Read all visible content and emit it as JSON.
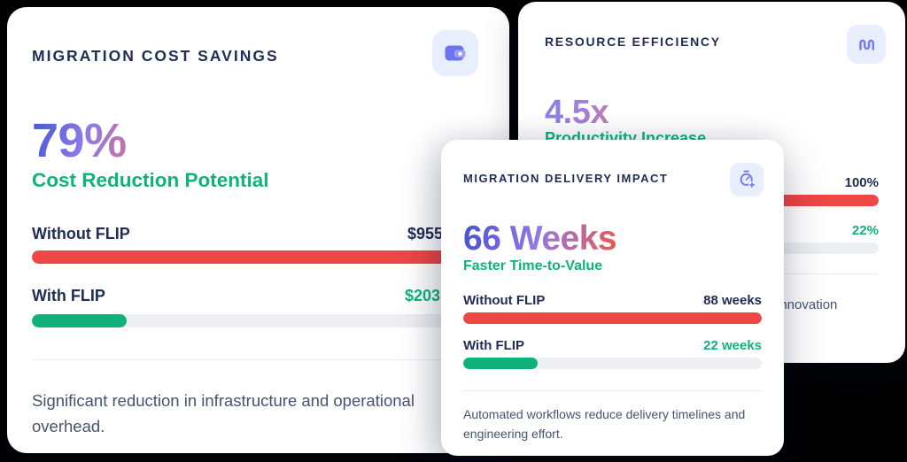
{
  "background_color": "#000000",
  "colors": {
    "navy": "#1f2c55",
    "slate": "#46536f",
    "green": "#0fb37a",
    "red": "#ef4646",
    "track": "#edeff3",
    "icon_purple": "#767cf0",
    "icon_tile_bg": "#e9eefc"
  },
  "cards": {
    "cost_savings": {
      "title": "MIGRATION COST SAVINGS",
      "icon": "wallet-icon",
      "metric_value": "79%",
      "metric_label": "Cost Reduction Potential",
      "rows": [
        {
          "label": "Without FLIP",
          "value": "$955",
          "percent": 100,
          "bar_color": "#ef4646"
        },
        {
          "label": "With FLIP",
          "value": "$203",
          "percent": 21,
          "bar_color": "#0fb37a"
        }
      ],
      "description": "Significant reduction in infrastructure and operational overhead."
    },
    "delivery_impact": {
      "title": "MIGRATION DELIVERY IMPACT",
      "icon": "stopwatch-plus-icon",
      "metric_value": "66 Weeks",
      "metric_label": "Faster Time-to-Value",
      "rows": [
        {
          "label": "Without FLIP",
          "value": "88 weeks",
          "percent": 100,
          "bar_color": "#ef4646"
        },
        {
          "label": "With FLIP",
          "value": "22 weeks",
          "percent": 25,
          "bar_color": "#0fb37a"
        }
      ],
      "description": "Automated workflows reduce delivery timelines and engineering effort."
    },
    "resource_efficiency": {
      "title": "RESOURCE EFFICIENCY",
      "icon": "waveform-icon",
      "metric_value": "4.5x",
      "metric_label": "Productivity Increase",
      "rows": [
        {
          "value": "100%",
          "percent": 100,
          "bar_color": "#ef4646"
        },
        {
          "value": "22%",
          "percent": 22,
          "bar_color": "#0fb37a"
        }
      ],
      "description_visible_fragment": "innovation"
    }
  },
  "chart_data": [
    {
      "type": "bar",
      "title": "MIGRATION COST SAVINGS",
      "headline": "79% Cost Reduction Potential",
      "categories": [
        "Without FLIP",
        "With FLIP"
      ],
      "values": [
        "$955",
        "$203"
      ],
      "percent_of_track": [
        100,
        21
      ],
      "bar_colors": [
        "#ef4646",
        "#0fb37a"
      ],
      "note": "values partially occluded by overlapping card"
    },
    {
      "type": "bar",
      "title": "MIGRATION DELIVERY IMPACT",
      "headline": "66 Weeks Faster Time-to-Value",
      "categories": [
        "Without FLIP",
        "With FLIP"
      ],
      "values": [
        88,
        22
      ],
      "unit": "weeks",
      "percent_of_track": [
        100,
        25
      ],
      "bar_colors": [
        "#ef4646",
        "#0fb37a"
      ]
    },
    {
      "type": "bar",
      "title": "RESOURCE EFFICIENCY",
      "headline": "4.5x Productivity Increase",
      "values": [
        100,
        22
      ],
      "unit": "%",
      "percent_of_track": [
        100,
        22
      ],
      "bar_colors": [
        "#ef4646",
        "#0fb37a"
      ]
    }
  ]
}
